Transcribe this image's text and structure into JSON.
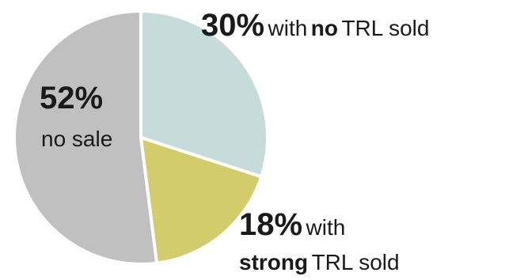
{
  "chart_data": {
    "type": "pie",
    "slices": [
      {
        "key": "no_trl",
        "value": 30,
        "color": "#c5dcdb",
        "label": {
          "pct": "30%",
          "pre": "with",
          "strong": "no",
          "post": "TRL sold"
        }
      },
      {
        "key": "strong_trl",
        "value": 18,
        "color": "#d2cc6a",
        "label": {
          "pct": "18%",
          "pre": "with",
          "strong": "strong",
          "post": "TRL sold"
        }
      },
      {
        "key": "no_sale",
        "value": 52,
        "color": "#c0c0c0",
        "label": {
          "pct": "52%",
          "text": "no sale"
        }
      }
    ],
    "start_angle_deg": 0,
    "direction": "clockwise",
    "slice_border_color": "#ffffff"
  }
}
